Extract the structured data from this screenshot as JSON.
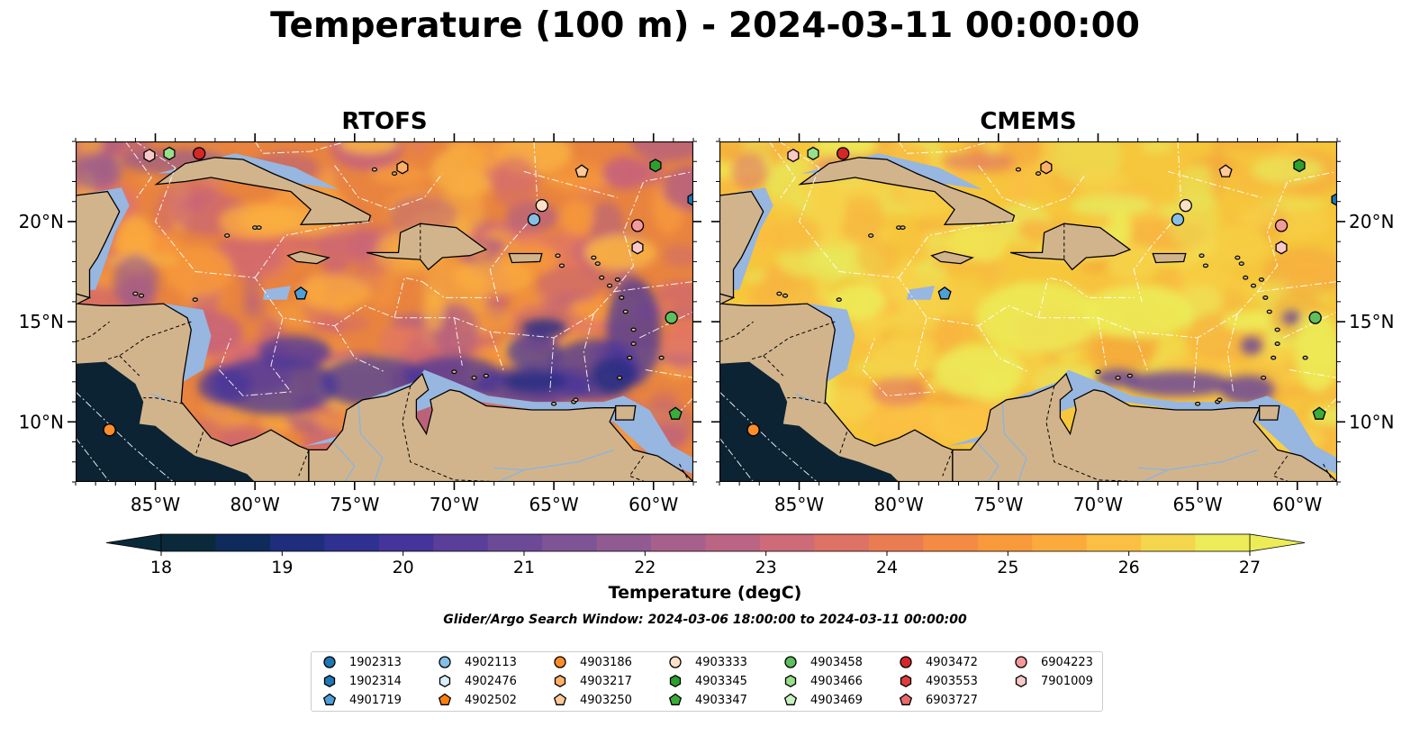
{
  "title": "Temperature (100 m) - 2024-03-11 00:00:00",
  "panels": [
    {
      "title": "RTOFS",
      "style": "rtofs"
    },
    {
      "title": "CMEMS",
      "style": "cmems"
    }
  ],
  "map_extent": {
    "lon_min": -89,
    "lon_max": -58,
    "lat_min": 7,
    "lat_max": 24
  },
  "axes": {
    "lon_ticks": [
      {
        "value": -85,
        "label": "85°W"
      },
      {
        "value": -80,
        "label": "80°W"
      },
      {
        "value": -75,
        "label": "75°W"
      },
      {
        "value": -70,
        "label": "70°W"
      },
      {
        "value": -65,
        "label": "65°W"
      },
      {
        "value": -60,
        "label": "60°W"
      }
    ],
    "lat_ticks": [
      {
        "value": 20,
        "label": "20°N"
      },
      {
        "value": 15,
        "label": "15°N"
      },
      {
        "value": 10,
        "label": "10°N"
      }
    ]
  },
  "colorbar": {
    "label": "Temperature (degC)",
    "min": 18,
    "max": 27,
    "ticks": [
      "18",
      "19",
      "20",
      "21",
      "22",
      "23",
      "24",
      "25",
      "26",
      "27"
    ],
    "colors": [
      "#0a2a3b",
      "#0e2b5c",
      "#1e2e7c",
      "#2f3190",
      "#45349a",
      "#5a3e9a",
      "#6d4a98",
      "#7e5496",
      "#915b92",
      "#a7608b",
      "#bb6584",
      "#cd6b78",
      "#dd7265",
      "#ea7c52",
      "#f48a43",
      "#f8993b",
      "#fbab3c",
      "#fbbf43",
      "#f3d64b",
      "#ecec58"
    ]
  },
  "search_window": "Glider/Argo Search Window: 2024-03-06 18:00:00 to 2024-03-11 00:00:00",
  "legend": {
    "columns": [
      [
        {
          "id": "1902313",
          "marker": "circle",
          "color": "#1f77b4"
        },
        {
          "id": "1902314",
          "marker": "hexagon",
          "color": "#1f77b4"
        },
        {
          "id": "4901719",
          "marker": "pentagon",
          "color": "#4e9fd8"
        }
      ],
      [
        {
          "id": "4902113",
          "marker": "circle",
          "color": "#86bfe6"
        },
        {
          "id": "4902476",
          "marker": "hexagon",
          "color": "#d9eefb"
        },
        {
          "id": "4902502",
          "marker": "pentagon",
          "color": "#ff7f0e"
        }
      ],
      [
        {
          "id": "4903186",
          "marker": "circle",
          "color": "#ff8c2a"
        },
        {
          "id": "4903217",
          "marker": "hexagon",
          "color": "#ffb067"
        },
        {
          "id": "4903250",
          "marker": "pentagon",
          "color": "#ffc999"
        }
      ],
      [
        {
          "id": "4903333",
          "marker": "circle",
          "color": "#fde0c6"
        },
        {
          "id": "4903345",
          "marker": "hexagon",
          "color": "#2ca02c"
        },
        {
          "id": "4903347",
          "marker": "pentagon",
          "color": "#3aac3a"
        }
      ],
      [
        {
          "id": "4903458",
          "marker": "circle",
          "color": "#5dbf5d"
        },
        {
          "id": "4903466",
          "marker": "hexagon",
          "color": "#98df8a"
        },
        {
          "id": "4903469",
          "marker": "pentagon",
          "color": "#c8f0c0"
        }
      ],
      [
        {
          "id": "4903472",
          "marker": "circle",
          "color": "#d62728"
        },
        {
          "id": "4903553",
          "marker": "hexagon",
          "color": "#e03c3c"
        },
        {
          "id": "6903727",
          "marker": "pentagon",
          "color": "#ea6a6a"
        }
      ],
      [
        {
          "id": "6904223",
          "marker": "circle",
          "color": "#f49a9a"
        },
        {
          "id": "7901009",
          "marker": "hexagon",
          "color": "#fbc8c8"
        }
      ]
    ]
  },
  "floats": [
    {
      "id": "4901719",
      "lon": -77.7,
      "lat": 16.4
    },
    {
      "id": "4902113",
      "lon": -66.0,
      "lat": 20.1
    },
    {
      "id": "4903333",
      "lon": -65.6,
      "lat": 20.8
    },
    {
      "id": "6904223",
      "lon": -60.8,
      "lat": 19.8
    },
    {
      "id": "7901009",
      "lon": -60.8,
      "lat": 18.7
    },
    {
      "id": "4903217",
      "lon": -72.6,
      "lat": 22.7
    },
    {
      "id": "4903250",
      "lon": -63.6,
      "lat": 22.5
    },
    {
      "id": "4903345",
      "lon": -59.9,
      "lat": 22.8
    },
    {
      "id": "4903458",
      "lon": -59.1,
      "lat": 15.2
    },
    {
      "id": "4903347",
      "lon": -58.9,
      "lat": 10.4
    },
    {
      "id": "4903186",
      "lon": -87.3,
      "lat": 9.6
    },
    {
      "id": "7901009",
      "lon": -85.3,
      "lat": 23.3
    },
    {
      "id": "4903466",
      "lon": -84.3,
      "lat": 23.4
    },
    {
      "id": "4903472",
      "lon": -82.8,
      "lat": 23.4
    },
    {
      "id": "1902314",
      "lon": -58.0,
      "lat": 21.1
    }
  ]
}
